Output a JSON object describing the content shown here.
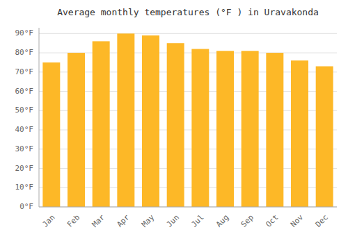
{
  "chart_data": {
    "type": "bar",
    "title": "Average monthly temperatures (°F ) in Uravakonda",
    "categories": [
      "Jan",
      "Feb",
      "Mar",
      "Apr",
      "May",
      "Jun",
      "Jul",
      "Aug",
      "Sep",
      "Oct",
      "Nov",
      "Dec"
    ],
    "values": [
      75,
      80,
      86,
      90,
      89,
      85,
      82,
      81,
      81,
      80,
      76,
      73
    ],
    "color": "#FDB827",
    "ylim": [
      0,
      93
    ],
    "yticks": [
      {
        "value": 0,
        "label": "0°F"
      },
      {
        "value": 10,
        "label": "10°F"
      },
      {
        "value": 20,
        "label": "20°F"
      },
      {
        "value": 30,
        "label": "30°F"
      },
      {
        "value": 40,
        "label": "40°F"
      },
      {
        "value": 50,
        "label": "50°F"
      },
      {
        "value": 60,
        "label": "60°F"
      },
      {
        "value": 70,
        "label": "70°F"
      },
      {
        "value": 80,
        "label": "80°F"
      },
      {
        "value": 90,
        "label": "90°F"
      }
    ],
    "grid": true
  }
}
